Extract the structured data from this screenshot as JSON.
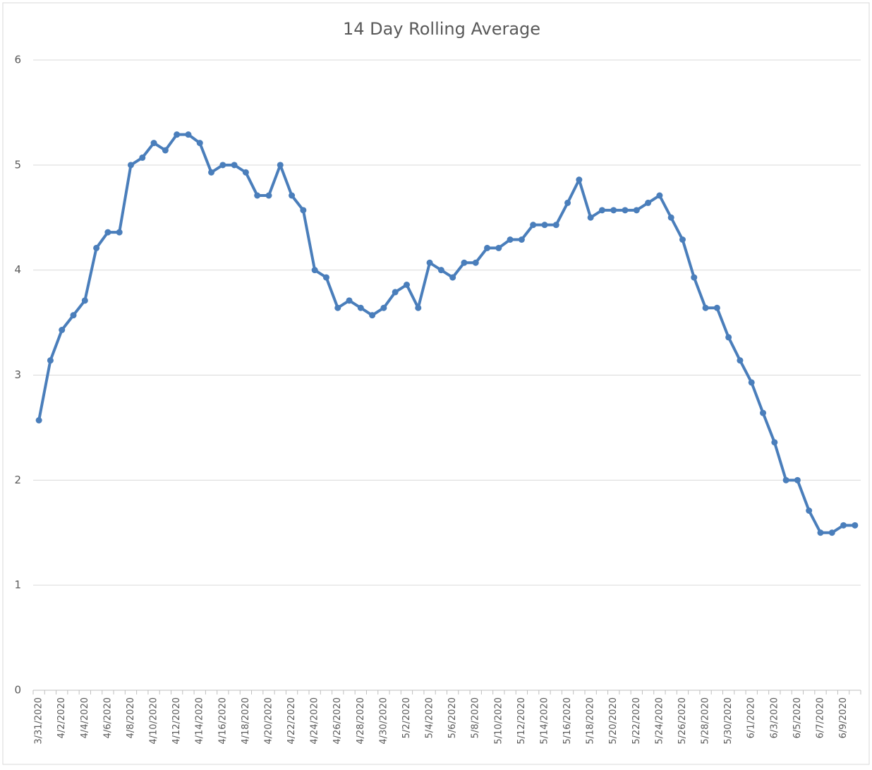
{
  "chart_data": {
    "type": "line",
    "title": "14 Day Rolling Average",
    "categories": [
      "3/31/2020",
      null,
      "4/2/2020",
      null,
      "4/4/2020",
      null,
      "4/6/2020",
      null,
      "4/8/2020",
      null,
      "4/10/2020",
      null,
      "4/12/2020",
      null,
      "4/14/2020",
      null,
      "4/16/2020",
      null,
      "4/18/2020",
      null,
      "4/20/2020",
      null,
      "4/22/2020",
      null,
      "4/24/2020",
      null,
      "4/26/2020",
      null,
      "4/28/2020",
      null,
      "4/30/2020",
      null,
      "5/2/2020",
      null,
      "5/4/2020",
      null,
      "5/6/2020",
      null,
      "5/8/2020",
      null,
      "5/10/2020",
      null,
      "5/12/2020",
      null,
      "5/14/2020",
      null,
      "5/16/2020",
      null,
      "5/18/2020",
      null,
      "5/20/2020",
      null,
      "5/22/2020",
      null,
      "5/24/2020",
      null,
      "5/26/2020",
      null,
      "5/28/2020",
      null,
      "5/30/2020",
      null,
      "6/1/2020",
      null,
      "6/3/2020",
      null,
      "6/5/2020",
      null,
      "6/7/2020",
      null,
      "6/9/2020",
      null
    ],
    "series": [
      {
        "name": "14 Day Rolling Average",
        "color": "#4a7ebb",
        "values": [
          2.57,
          3.14,
          3.43,
          3.57,
          3.71,
          4.21,
          4.36,
          4.36,
          5.0,
          5.07,
          5.21,
          5.14,
          5.29,
          5.29,
          5.21,
          4.93,
          5.0,
          5.0,
          4.93,
          4.71,
          4.71,
          5.0,
          4.71,
          4.57,
          4.0,
          3.93,
          3.64,
          3.71,
          3.64,
          3.57,
          3.64,
          3.79,
          3.86,
          3.64,
          4.07,
          4.0,
          3.93,
          4.07,
          4.07,
          4.21,
          4.21,
          4.29,
          4.29,
          4.43,
          4.43,
          4.43,
          4.64,
          4.86,
          4.5,
          4.57,
          4.57,
          4.57,
          4.57,
          4.64,
          4.71,
          4.5,
          4.29,
          3.93,
          3.64,
          3.64,
          3.36,
          3.14,
          2.93,
          2.64,
          2.36,
          2.0,
          2.0,
          1.71,
          1.5,
          1.5,
          1.57,
          1.57
        ]
      }
    ],
    "ylim": [
      0,
      6
    ],
    "yticks": [
      0,
      1,
      2,
      3,
      4,
      5,
      6
    ],
    "grid": true
  }
}
